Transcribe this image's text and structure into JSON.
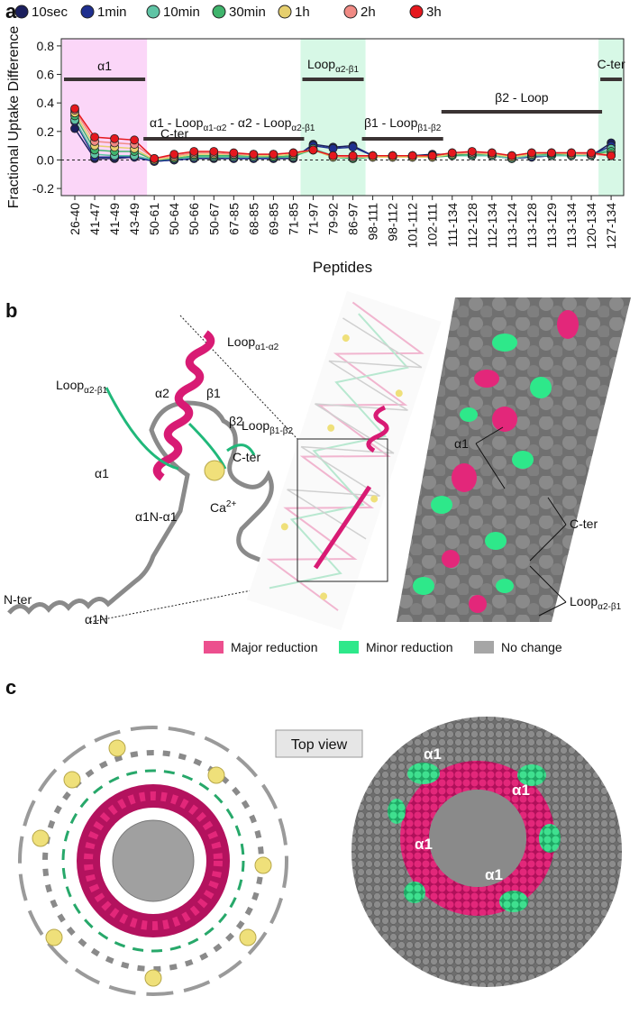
{
  "chart_data": {
    "type": "line",
    "panel_label": "a",
    "y_label": "Fractional Uptake Difference",
    "x_label": "Peptides",
    "categories": [
      "26-40",
      "41-47",
      "41-49",
      "43-49",
      "50-61",
      "50-64",
      "50-66",
      "50-67",
      "67-85",
      "68-85",
      "69-85",
      "71-85",
      "71-97",
      "79-92",
      "86-97",
      "98-111",
      "98-112",
      "101-112",
      "102-111",
      "111-134",
      "112-128",
      "112-134",
      "113-124",
      "113-128",
      "113-129",
      "113-134",
      "120-134",
      "127-134"
    ],
    "series": [
      {
        "name": "10sec",
        "color": "#1b1f5e",
        "values": [
          0.22,
          0.01,
          0.01,
          0.02,
          -0.01,
          0,
          0.01,
          0.01,
          0.01,
          0.01,
          0.01,
          0.01,
          0.11,
          0.09,
          0.1,
          0.03,
          0.03,
          0.03,
          0.04,
          0.04,
          0.03,
          0.03,
          0.01,
          0.02,
          0.03,
          0.03,
          0.03,
          0.12
        ]
      },
      {
        "name": "1min",
        "color": "#1f2f8f",
        "values": [
          0.27,
          0.02,
          0.02,
          0.02,
          -0.01,
          0,
          0.01,
          0.02,
          0.01,
          0.01,
          0.01,
          0.02,
          0.1,
          0.08,
          0.09,
          0.03,
          0.03,
          0.03,
          0.03,
          0.04,
          0.03,
          0.03,
          0.01,
          0.02,
          0.03,
          0.03,
          0.03,
          0.1
        ]
      },
      {
        "name": "10min",
        "color": "#5fc4a5",
        "values": [
          0.28,
          0.04,
          0.03,
          0.03,
          0,
          0.01,
          0.02,
          0.02,
          0.02,
          0.02,
          0.02,
          0.02,
          0.08,
          0.03,
          0.01,
          0.02,
          0.02,
          0.02,
          0.02,
          0.03,
          0.03,
          0.03,
          0.01,
          0.03,
          0.03,
          0.03,
          0.03,
          0.08
        ]
      },
      {
        "name": "30min",
        "color": "#3fb46c",
        "values": [
          0.31,
          0.07,
          0.06,
          0.06,
          0,
          0.01,
          0.03,
          0.03,
          0.03,
          0.03,
          0.02,
          0.03,
          0.07,
          0.02,
          0.01,
          0.02,
          0.02,
          0.02,
          0.02,
          0.03,
          0.04,
          0.04,
          0.02,
          0.04,
          0.04,
          0.04,
          0.04,
          0.06
        ]
      },
      {
        "name": "1h",
        "color": "#e6cf6e",
        "values": [
          0.33,
          0.1,
          0.09,
          0.08,
          0,
          0.02,
          0.04,
          0.04,
          0.04,
          0.03,
          0.03,
          0.04,
          0.07,
          0.02,
          0.02,
          0.02,
          0.02,
          0.02,
          0.02,
          0.04,
          0.05,
          0.04,
          0.02,
          0.04,
          0.05,
          0.04,
          0.04,
          0.04
        ]
      },
      {
        "name": "2h",
        "color": "#f08a84",
        "values": [
          0.35,
          0.13,
          0.12,
          0.11,
          0.01,
          0.03,
          0.05,
          0.05,
          0.04,
          0.04,
          0.04,
          0.05,
          0.07,
          0.03,
          0.02,
          0.03,
          0.03,
          0.03,
          0.03,
          0.05,
          0.05,
          0.05,
          0.03,
          0.05,
          0.05,
          0.05,
          0.04,
          0.03
        ]
      },
      {
        "name": "3h",
        "color": "#e5181e",
        "values": [
          0.36,
          0.16,
          0.15,
          0.14,
          0.01,
          0.04,
          0.06,
          0.06,
          0.05,
          0.04,
          0.04,
          0.05,
          0.07,
          0.03,
          0.03,
          0.03,
          0.03,
          0.03,
          0.03,
          0.05,
          0.06,
          0.05,
          0.03,
          0.05,
          0.05,
          0.05,
          0.05,
          0.03
        ]
      }
    ],
    "ylim": [
      -0.25,
      0.85
    ],
    "yticks": [
      -0.2,
      {
        "value": 0,
        "label": "0.0"
      },
      0.2,
      0.4,
      0.6,
      0.8
    ],
    "annotations": [
      [
        {
          "text": "α1"
        }
      ],
      [
        {
          "text": "α1 - Loop"
        },
        {
          "sub": "α1-α2"
        },
        {
          "text": " - α2 - Loop"
        },
        {
          "sub": "α2-β1"
        }
      ],
      [
        {
          "text": "C-ter"
        }
      ],
      [
        {
          "text": "Loop"
        },
        {
          "sub": "α2-β1"
        }
      ],
      [
        {
          "text": "β1 - Loop"
        },
        {
          "sub": "β1-β2"
        }
      ],
      [
        {
          "text": "β2 - Loop"
        }
      ],
      [
        {
          "text": "C-ter"
        }
      ]
    ]
  },
  "panel_b": {
    "label": "b",
    "cartoon_labels": [
      [
        {
          "text": "Loop"
        },
        {
          "sub": "α2-β1"
        }
      ],
      [
        {
          "text": "Loop"
        },
        {
          "sub": "α1-α2"
        }
      ],
      [
        {
          "text": "α2"
        }
      ],
      [
        {
          "text": "β1"
        }
      ],
      [
        {
          "text": "β2"
        }
      ],
      [
        {
          "text": "Loop"
        },
        {
          "sub": "β1-β2"
        }
      ],
      [
        {
          "text": "C-ter"
        }
      ],
      [
        {
          "text": "α1"
        }
      ],
      [
        {
          "text": "Ca"
        },
        {
          "sup": "2+"
        }
      ],
      [
        {
          "text": "α1N-α1"
        }
      ],
      [
        {
          "text": "N-ter"
        }
      ],
      [
        {
          "text": "α1N"
        }
      ]
    ],
    "surface_labels": [
      [
        {
          "text": "α1"
        }
      ],
      [
        {
          "text": "C-ter"
        }
      ],
      [
        {
          "text": "Loop"
        },
        {
          "sub": "α2-β1"
        }
      ]
    ],
    "legend": [
      {
        "text": "Major reduction",
        "color": "#ec4f8e"
      },
      {
        "text": "Minor reduction",
        "color": "#2ee88a"
      },
      {
        "text": "No change",
        "color": "#a6a6a6"
      }
    ]
  },
  "panel_c": {
    "label": "c",
    "button": "Top view",
    "surface_labels": [
      "α1",
      "α1",
      "α1",
      "α1"
    ]
  }
}
